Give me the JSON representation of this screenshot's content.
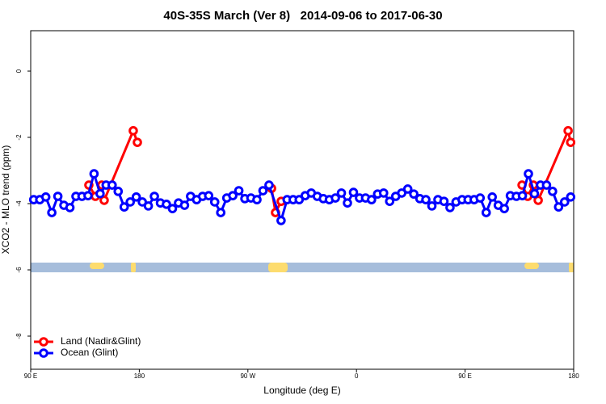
{
  "chart_data": {
    "type": "line",
    "title": "40S-35S March (Ver 8)   2014-09-06 to 2017-06-30",
    "x_label": "Longitude (deg E)",
    "y_label": "XCO2 - MLO trend (ppm)",
    "xlim": [
      90,
      540
    ],
    "xticks": [
      {
        "value": 90,
        "label": "90 E"
      },
      180,
      {
        "value": 270,
        "label": "90 W"
      },
      {
        "value": 360,
        "label": "0"
      },
      {
        "value": 450,
        "label": "90 E"
      },
      {
        "value": 540,
        "label": "180"
      }
    ],
    "ylim": [
      -9,
      1.22
    ],
    "yticks": [
      -8,
      -6,
      -4,
      -2,
      0
    ],
    "legend": "bottom-left",
    "series": [
      {
        "name": "Land (Nadir&Glint)",
        "color": "#ff0000",
        "x": [
          138.2,
          143.6,
          148.9,
          150.9,
          175.0,
          178.4,
          null,
          289.6,
          292.9,
          297.6,
          null,
          497.2,
          501.9,
          506.6,
          510.6,
          535.4,
          537.5
        ],
        "values": [
          -3.44,
          -3.78,
          -3.44,
          -3.9,
          -1.8,
          -2.15,
          null,
          -3.54,
          -4.27,
          -3.93,
          null,
          -3.44,
          -3.78,
          -3.44,
          -3.9,
          -1.8,
          -2.15
        ]
      },
      {
        "name": "Ocean (Glint)",
        "color": "#0000ff",
        "x": [
          92.5,
          97.5,
          102.5,
          107.5,
          112.5,
          117.5,
          122.5,
          127.5,
          132.5,
          137.5,
          142.5,
          147.5,
          152.5,
          157.5,
          162.5,
          167.5,
          172.5,
          177.5,
          182.5,
          187.5,
          192.5,
          197.5,
          202.5,
          207.5,
          212.5,
          217.5,
          222.5,
          227.5,
          232.5,
          237.5,
          242.5,
          247.5,
          252.5,
          257.5,
          262.5,
          267.5,
          272.5,
          277.5,
          282.5,
          287.5,
          297.5,
          302.5,
          307.5,
          312.5,
          317.5,
          322.5,
          327.5,
          332.5,
          337.5,
          342.5,
          347.5,
          352.5,
          357.5,
          362.5,
          367.5,
          372.5,
          377.5,
          382.5,
          387.5,
          392.5,
          397.5,
          402.5,
          407.5,
          412.5,
          417.5,
          422.5,
          427.5,
          432.5,
          437.5,
          442.5,
          447.5,
          452.5,
          457.5,
          462.5,
          467.5,
          472.5,
          477.5,
          482.5,
          487.5,
          492.5,
          497.5,
          502.5,
          507.5,
          512.5,
          517.5,
          522.5,
          527.5,
          532.5,
          537.5
        ],
        "values": [
          -3.88,
          -3.88,
          -3.8,
          -4.27,
          -3.78,
          -4.05,
          -4.12,
          -3.78,
          -3.78,
          -3.76,
          -3.1,
          -3.7,
          -3.44,
          -3.44,
          -3.63,
          -4.1,
          -3.95,
          -3.8,
          -3.95,
          -4.07,
          -3.78,
          -3.98,
          -4.02,
          -4.15,
          -3.98,
          -4.05,
          -3.78,
          -3.88,
          -3.78,
          -3.76,
          -3.95,
          -4.27,
          -3.83,
          -3.76,
          -3.61,
          -3.85,
          -3.83,
          -3.88,
          -3.61,
          -3.44,
          -4.51,
          -3.88,
          -3.88,
          -3.88,
          -3.76,
          -3.68,
          -3.78,
          -3.85,
          -3.88,
          -3.83,
          -3.68,
          -3.98,
          -3.66,
          -3.83,
          -3.83,
          -3.88,
          -3.71,
          -3.68,
          -3.93,
          -3.78,
          -3.68,
          -3.56,
          -3.71,
          -3.85,
          -3.88,
          -4.07,
          -3.88,
          -3.93,
          -4.12,
          -3.95,
          -3.88,
          -3.88,
          -3.88,
          -3.83,
          -4.27,
          -3.8,
          -4.05,
          -4.15,
          -3.76,
          -3.78,
          -3.76,
          -3.1,
          -3.7,
          -3.44,
          -3.44,
          -3.63,
          -4.1,
          -3.95,
          -3.8
        ]
      }
    ]
  }
}
